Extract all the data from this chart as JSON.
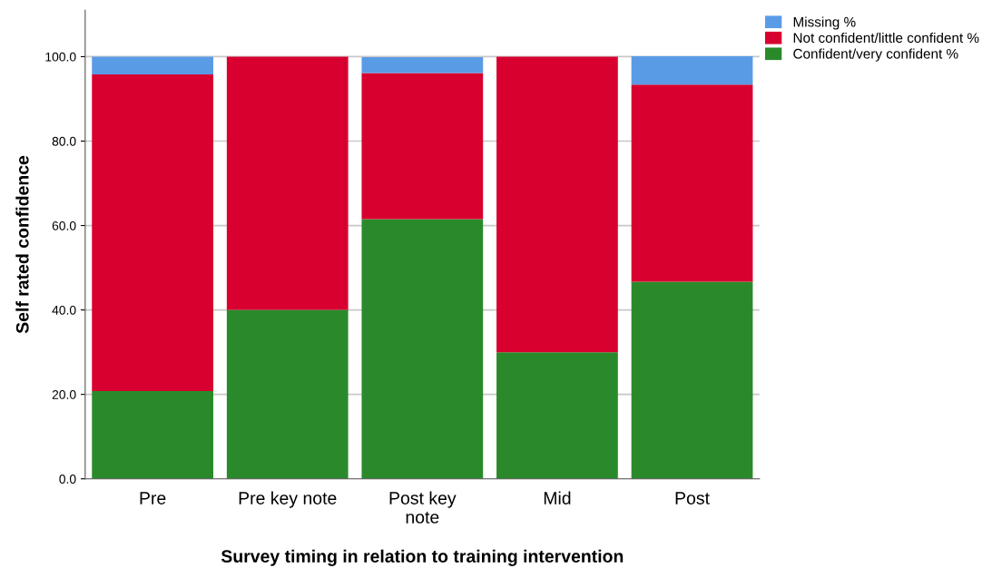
{
  "chart_data": {
    "type": "bar",
    "stacked": true,
    "xlabel": "Survey timing in relation to training intervention",
    "ylabel": "Self rated confidence",
    "categories": [
      "Pre",
      "Pre key note",
      "Post key\nnote",
      "Mid",
      "Post"
    ],
    "series": [
      {
        "name": "Confident/very confident %",
        "color": "#2a8a2b",
        "values": [
          20.8,
          40.0,
          61.5,
          30.0,
          46.7
        ]
      },
      {
        "name": "Not confident/little confident %",
        "color": "#d8002f",
        "values": [
          75.0,
          60.0,
          34.6,
          70.0,
          46.7
        ]
      },
      {
        "name": "Missing %",
        "color": "#5a9be6",
        "values": [
          4.2,
          null,
          3.8,
          null,
          6.7
        ]
      }
    ],
    "ylim": [
      0,
      111
    ],
    "yticks": [
      {
        "value": 0,
        "label": "0.0"
      },
      {
        "value": 20,
        "label": "20.0"
      },
      {
        "value": 40,
        "label": "40.0"
      },
      {
        "value": 60,
        "label": "60.0"
      },
      {
        "value": 80,
        "label": "80.0"
      },
      {
        "value": 100,
        "label": "100.0"
      }
    ],
    "grid": "y",
    "legend": "top right"
  }
}
